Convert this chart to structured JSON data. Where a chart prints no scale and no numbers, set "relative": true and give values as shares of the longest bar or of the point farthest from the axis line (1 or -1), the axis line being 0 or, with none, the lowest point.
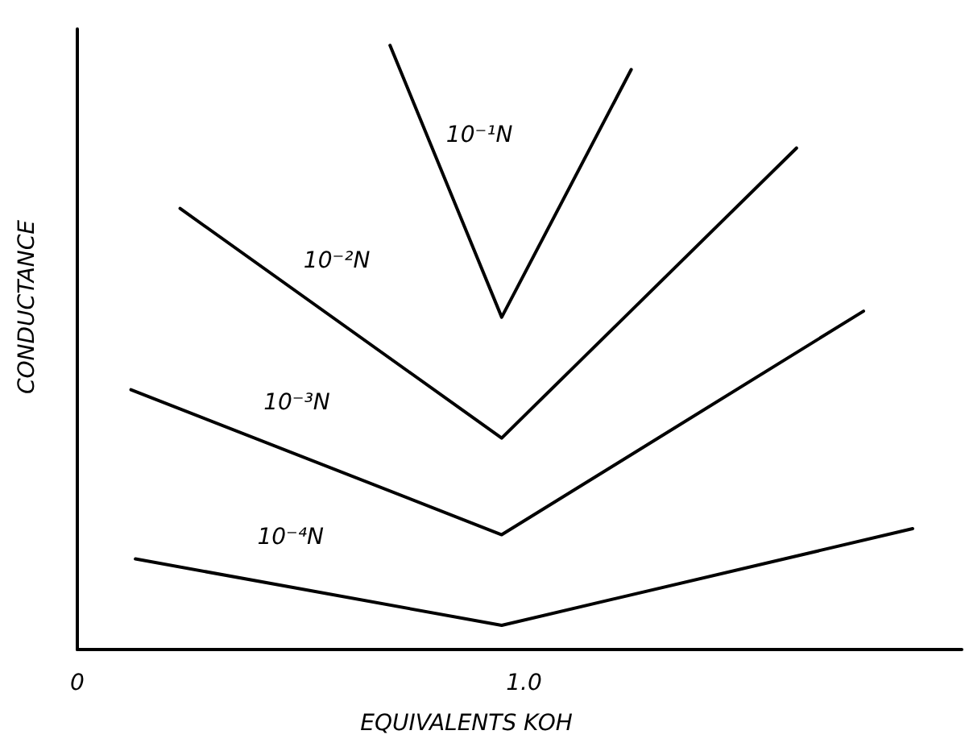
{
  "chart_data": {
    "type": "line",
    "xlabel": "EQUIVALENTS KOH",
    "ylabel": "CONDUCTANCE",
    "relative": true,
    "xlim": [
      0,
      1.98
    ],
    "xticks": [
      0,
      {
        "value": 1,
        "label": "1.0"
      }
    ],
    "grid": false,
    "legend": false,
    "marker": "none",
    "line_style": "solid",
    "series": [
      {
        "name": "10⁻¹N",
        "color": "#000000",
        "x": [
          0.7,
          0.95,
          1.24
        ],
        "values": [
          1.0,
          0.55,
          0.96
        ]
      },
      {
        "name": "10⁻²N",
        "color": "#000000",
        "x": [
          0.23,
          0.95,
          1.61
        ],
        "values": [
          0.73,
          0.35,
          0.83
        ]
      },
      {
        "name": "10⁻³N",
        "color": "#000000",
        "x": [
          0.12,
          0.95,
          1.76
        ],
        "values": [
          0.43,
          0.19,
          0.56
        ]
      },
      {
        "name": "10⁻⁴N",
        "color": "#000000",
        "x": [
          0.13,
          0.95,
          1.87
        ],
        "values": [
          0.15,
          0.04,
          0.2
        ]
      }
    ]
  }
}
